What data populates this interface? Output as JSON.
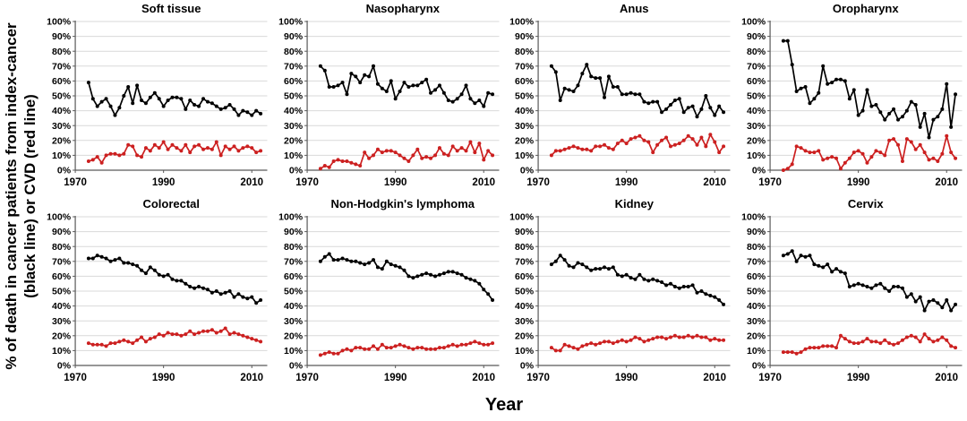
{
  "figure": {
    "ylabel_line1": "% of death in cancer patients from index-cancer",
    "ylabel_line2": "(black line) or CVD (red line)",
    "xlabel": "Year"
  },
  "chart_data": {
    "type": "line",
    "layout": "small multiples, 2 rows x 4 columns, shared axes style",
    "title": "",
    "xlabel": "Year",
    "ylabel": "% of death in cancer patients from index-cancer (black line) or CVD (red line)",
    "grid": true,
    "xlim": [
      1970,
      2013.5
    ],
    "ylim": [
      0,
      100
    ],
    "xticks": [
      1970,
      1990,
      2010
    ],
    "ytick_step": 10,
    "ytick_suffix": "%",
    "colors": {
      "index_cancer": "#000000",
      "cvd": "#cc2020",
      "grid": "#d9d9d9",
      "axis": "#595959",
      "tick_text": "#000000"
    },
    "series_legend": [
      {
        "name": "death from index-cancer",
        "color": "#000000"
      },
      {
        "name": "death from CVD",
        "color": "#cc2020"
      }
    ],
    "years": [
      1973,
      1974,
      1975,
      1976,
      1977,
      1978,
      1979,
      1980,
      1981,
      1982,
      1983,
      1984,
      1985,
      1986,
      1987,
      1988,
      1989,
      1990,
      1991,
      1992,
      1993,
      1994,
      1995,
      1996,
      1997,
      1998,
      1999,
      2000,
      2001,
      2002,
      2003,
      2004,
      2005,
      2006,
      2007,
      2008,
      2009,
      2010,
      2011,
      2012
    ],
    "panels": [
      {
        "title": "Soft tissue",
        "index_cancer": [
          59,
          48,
          43,
          46,
          48,
          43,
          37,
          42,
          50,
          56,
          45,
          57,
          47,
          45,
          49,
          52,
          48,
          43,
          47,
          49,
          49,
          48,
          41,
          47,
          44,
          43,
          48,
          46,
          45,
          43,
          41,
          42,
          44,
          41,
          37,
          40,
          39,
          37,
          40,
          38
        ],
        "cvd": [
          6,
          7,
          9,
          5,
          10,
          11,
          11,
          10,
          11,
          17,
          16,
          10,
          9,
          15,
          13,
          17,
          15,
          19,
          14,
          17,
          15,
          13,
          17,
          12,
          16,
          17,
          14,
          15,
          14,
          19,
          10,
          16,
          14,
          16,
          13,
          15,
          16,
          15,
          12,
          13
        ]
      },
      {
        "title": "Nasopharynx",
        "index_cancer": [
          70,
          67,
          56,
          56,
          57,
          59,
          51,
          65,
          63,
          59,
          64,
          63,
          70,
          58,
          55,
          53,
          60,
          48,
          53,
          59,
          56,
          57,
          57,
          59,
          61,
          52,
          54,
          57,
          52,
          47,
          46,
          48,
          51,
          57,
          48,
          45,
          47,
          43,
          52,
          51
        ],
        "cvd": [
          1,
          3,
          2,
          6,
          7,
          6,
          6,
          5,
          4,
          3,
          12,
          8,
          10,
          14,
          12,
          13,
          13,
          12,
          10,
          8,
          6,
          10,
          14,
          8,
          9,
          8,
          10,
          15,
          11,
          10,
          16,
          13,
          15,
          13,
          19,
          12,
          18,
          7,
          13,
          10
        ]
      },
      {
        "title": "Anus",
        "index_cancer": [
          70,
          66,
          47,
          55,
          54,
          53,
          57,
          65,
          71,
          63,
          62,
          62,
          49,
          63,
          56,
          56,
          51,
          51,
          52,
          51,
          51,
          46,
          45,
          46,
          46,
          39,
          41,
          44,
          47,
          48,
          39,
          42,
          43,
          36,
          41,
          50,
          42,
          37,
          43,
          39
        ],
        "cvd": [
          10,
          13,
          13,
          14,
          15,
          16,
          15,
          14,
          14,
          13,
          16,
          16,
          17,
          15,
          14,
          18,
          20,
          18,
          21,
          22,
          23,
          20,
          19,
          12,
          17,
          20,
          22,
          16,
          17,
          18,
          20,
          23,
          21,
          17,
          22,
          16,
          24,
          19,
          12,
          16
        ]
      },
      {
        "title": "Oropharynx",
        "index_cancer": [
          87,
          87,
          71,
          53,
          55,
          56,
          45,
          48,
          52,
          70,
          58,
          59,
          61,
          61,
          60,
          48,
          54,
          37,
          40,
          54,
          43,
          44,
          39,
          34,
          38,
          41,
          34,
          36,
          40,
          46,
          44,
          29,
          38,
          22,
          34,
          36,
          41,
          58,
          29,
          51
        ],
        "cvd": [
          0,
          1,
          4,
          16,
          15,
          13,
          12,
          12,
          13,
          7,
          8,
          9,
          8,
          1,
          5,
          8,
          12,
          13,
          11,
          5,
          9,
          13,
          12,
          10,
          20,
          21,
          17,
          6,
          21,
          19,
          14,
          17,
          12,
          7,
          8,
          6,
          11,
          23,
          12,
          8
        ]
      },
      {
        "title": "Colorectal",
        "index_cancer": [
          72,
          72,
          74,
          73,
          72,
          70,
          71,
          72,
          69,
          69,
          68,
          67,
          64,
          62,
          66,
          64,
          61,
          60,
          61,
          58,
          57,
          57,
          55,
          53,
          52,
          53,
          52,
          51,
          49,
          50,
          48,
          49,
          50,
          46,
          48,
          46,
          45,
          46,
          42,
          44
        ],
        "cvd": [
          15,
          14,
          14,
          14,
          13,
          15,
          15,
          16,
          17,
          16,
          15,
          17,
          19,
          16,
          18,
          19,
          21,
          20,
          22,
          21,
          21,
          20,
          21,
          23,
          21,
          22,
          23,
          23,
          24,
          22,
          23,
          25,
          21,
          22,
          21,
          20,
          19,
          18,
          17,
          16
        ]
      },
      {
        "title": "Non-Hodgkin's lymphoma",
        "index_cancer": [
          70,
          73,
          75,
          71,
          71,
          72,
          71,
          70,
          70,
          69,
          68,
          69,
          71,
          66,
          65,
          70,
          68,
          67,
          66,
          64,
          60,
          59,
          60,
          61,
          62,
          61,
          60,
          61,
          62,
          63,
          63,
          62,
          61,
          59,
          58,
          57,
          55,
          51,
          48,
          44
        ],
        "cvd": [
          7,
          8,
          9,
          8,
          8,
          10,
          11,
          10,
          12,
          12,
          11,
          11,
          13,
          11,
          14,
          12,
          12,
          13,
          14,
          13,
          12,
          11,
          12,
          12,
          11,
          11,
          11,
          12,
          12,
          13,
          14,
          13,
          14,
          14,
          15,
          16,
          15,
          14,
          14,
          15
        ]
      },
      {
        "title": "Kidney",
        "index_cancer": [
          68,
          70,
          74,
          71,
          67,
          66,
          69,
          68,
          66,
          64,
          65,
          65,
          66,
          65,
          66,
          61,
          60,
          61,
          59,
          58,
          61,
          58,
          57,
          58,
          57,
          56,
          54,
          55,
          53,
          52,
          53,
          53,
          54,
          49,
          50,
          48,
          47,
          46,
          44,
          41
        ],
        "cvd": [
          12,
          10,
          10,
          14,
          13,
          12,
          11,
          13,
          14,
          15,
          14,
          15,
          16,
          16,
          15,
          16,
          17,
          16,
          17,
          19,
          18,
          16,
          17,
          18,
          19,
          19,
          18,
          19,
          20,
          19,
          19,
          20,
          19,
          20,
          19,
          19,
          17,
          18,
          17,
          17
        ]
      },
      {
        "title": "Cervix",
        "index_cancer": [
          74,
          75,
          77,
          70,
          74,
          73,
          74,
          68,
          67,
          66,
          68,
          63,
          65,
          63,
          62,
          53,
          54,
          55,
          54,
          53,
          52,
          54,
          55,
          52,
          50,
          53,
          53,
          52,
          46,
          48,
          43,
          46,
          37,
          43,
          44,
          42,
          39,
          44,
          37,
          41
        ],
        "cvd": [
          9,
          9,
          9,
          8,
          9,
          11,
          12,
          12,
          12,
          13,
          13,
          13,
          12,
          20,
          18,
          16,
          15,
          15,
          16,
          18,
          16,
          16,
          15,
          17,
          15,
          14,
          15,
          17,
          19,
          20,
          19,
          16,
          21,
          18,
          16,
          17,
          19,
          17,
          13,
          12
        ]
      }
    ]
  }
}
